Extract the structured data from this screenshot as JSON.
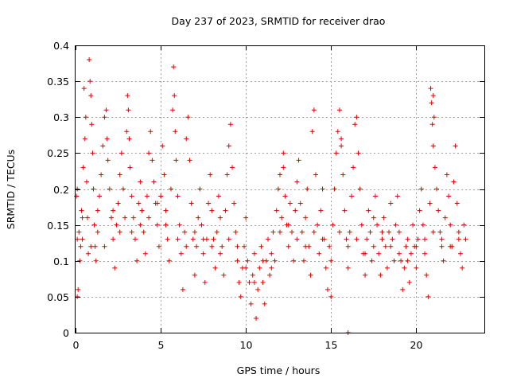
{
  "chart_data": {
    "type": "scatter",
    "title": "Day 237 of 2023, SRMTID for receiver drao",
    "xlabel": "GPS time / hours",
    "ylabel": "SRMTID / TECUs",
    "xlim": [
      0,
      24
    ],
    "ylim": [
      0,
      0.4
    ],
    "xticks": [
      0,
      5,
      10,
      15,
      20
    ],
    "xtick_labels": [
      "0",
      "5",
      "10",
      "15",
      "20"
    ],
    "yticks": [
      0,
      0.05,
      0.1,
      0.15,
      0.2,
      0.25,
      0.3,
      0.35,
      0.4
    ],
    "ytick_labels": [
      "0",
      "0.05",
      "0.1",
      "0.15",
      "0.2",
      "0.25",
      "0.3",
      "0.35",
      "0.4"
    ],
    "grid": true,
    "marker": "+",
    "color": "#e00000",
    "series": [
      {
        "name": "drao",
        "points": [
          [
            0.05,
            0.19
          ],
          [
            0.1,
            0.2
          ],
          [
            0.1,
            0.05
          ],
          [
            0.15,
            0.06
          ],
          [
            0.2,
            0.14
          ],
          [
            0.25,
            0.1
          ],
          [
            0.3,
            0.12
          ],
          [
            0.35,
            0.17
          ],
          [
            0.4,
            0.13
          ],
          [
            0.45,
            0.23
          ],
          [
            0.5,
            0.34
          ],
          [
            0.55,
            0.27
          ],
          [
            0.6,
            0.3
          ],
          [
            0.65,
            0.21
          ],
          [
            0.7,
            0.16
          ],
          [
            0.75,
            0.11
          ],
          [
            0.8,
            0.38
          ],
          [
            0.85,
            0.35
          ],
          [
            0.9,
            0.33
          ],
          [
            0.95,
            0.29
          ],
          [
            1.0,
            0.25
          ],
          [
            1.05,
            0.2
          ],
          [
            1.1,
            0.15
          ],
          [
            1.15,
            0.12
          ],
          [
            1.2,
            0.1
          ],
          [
            1.3,
            0.17
          ],
          [
            1.4,
            0.19
          ],
          [
            1.5,
            0.22
          ],
          [
            1.6,
            0.26
          ],
          [
            1.7,
            0.3
          ],
          [
            1.8,
            0.31
          ],
          [
            1.85,
            0.27
          ],
          [
            1.9,
            0.24
          ],
          [
            2.0,
            0.2
          ],
          [
            2.1,
            0.16
          ],
          [
            2.2,
            0.13
          ],
          [
            2.3,
            0.09
          ],
          [
            2.4,
            0.15
          ],
          [
            2.5,
            0.18
          ],
          [
            2.6,
            0.22
          ],
          [
            2.7,
            0.25
          ],
          [
            2.8,
            0.2
          ],
          [
            2.9,
            0.16
          ],
          [
            3.0,
            0.28
          ],
          [
            3.05,
            0.33
          ],
          [
            3.1,
            0.31
          ],
          [
            3.15,
            0.27
          ],
          [
            3.2,
            0.23
          ],
          [
            3.3,
            0.19
          ],
          [
            3.4,
            0.16
          ],
          [
            3.5,
            0.13
          ],
          [
            3.6,
            0.1
          ],
          [
            3.7,
            0.18
          ],
          [
            3.8,
            0.21
          ],
          [
            3.9,
            0.17
          ],
          [
            4.0,
            0.14
          ],
          [
            4.1,
            0.11
          ],
          [
            4.2,
            0.19
          ],
          [
            4.3,
            0.25
          ],
          [
            4.4,
            0.28
          ],
          [
            4.5,
            0.24
          ],
          [
            4.6,
            0.21
          ],
          [
            4.7,
            0.18
          ],
          [
            4.8,
            0.15
          ],
          [
            4.9,
            0.12
          ],
          [
            5.0,
            0.19
          ],
          [
            5.1,
            0.26
          ],
          [
            5.2,
            0.22
          ],
          [
            5.3,
            0.17
          ],
          [
            5.4,
            0.13
          ],
          [
            5.5,
            0.1
          ],
          [
            5.6,
            0.2
          ],
          [
            5.7,
            0.31
          ],
          [
            5.75,
            0.37
          ],
          [
            5.8,
            0.33
          ],
          [
            5.85,
            0.28
          ],
          [
            5.9,
            0.24
          ],
          [
            6.0,
            0.19
          ],
          [
            6.1,
            0.15
          ],
          [
            6.2,
            0.11
          ],
          [
            6.3,
            0.06
          ],
          [
            6.4,
            0.14
          ],
          [
            6.5,
            0.27
          ],
          [
            6.6,
            0.3
          ],
          [
            6.7,
            0.24
          ],
          [
            6.8,
            0.18
          ],
          [
            6.9,
            0.13
          ],
          [
            7.0,
            0.08
          ],
          [
            7.1,
            0.12
          ],
          [
            7.2,
            0.16
          ],
          [
            7.3,
            0.2
          ],
          [
            7.4,
            0.15
          ],
          [
            7.5,
            0.11
          ],
          [
            7.6,
            0.07
          ],
          [
            7.7,
            0.13
          ],
          [
            7.8,
            0.18
          ],
          [
            7.9,
            0.22
          ],
          [
            8.0,
            0.17
          ],
          [
            8.1,
            0.13
          ],
          [
            8.2,
            0.09
          ],
          [
            8.3,
            0.14
          ],
          [
            8.4,
            0.19
          ],
          [
            8.5,
            0.16
          ],
          [
            8.6,
            0.12
          ],
          [
            8.7,
            0.08
          ],
          [
            8.8,
            0.17
          ],
          [
            8.9,
            0.22
          ],
          [
            9.0,
            0.26
          ],
          [
            9.1,
            0.29
          ],
          [
            9.2,
            0.23
          ],
          [
            9.3,
            0.18
          ],
          [
            9.4,
            0.14
          ],
          [
            9.5,
            0.1
          ],
          [
            9.6,
            0.07
          ],
          [
            9.7,
            0.05
          ],
          [
            9.8,
            0.09
          ],
          [
            9.9,
            0.12
          ],
          [
            10.0,
            0.16
          ],
          [
            10.1,
            0.1
          ],
          [
            10.2,
            0.07
          ],
          [
            10.3,
            0.04
          ],
          [
            10.4,
            0.08
          ],
          [
            10.5,
            0.11
          ],
          [
            10.6,
            0.02
          ],
          [
            10.7,
            0.06
          ],
          [
            10.8,
            0.09
          ],
          [
            10.9,
            0.12
          ],
          [
            11.0,
            0.07
          ],
          [
            11.1,
            0.04
          ],
          [
            11.2,
            0.1
          ],
          [
            11.3,
            0.13
          ],
          [
            11.4,
            0.08
          ],
          [
            11.5,
            0.11
          ],
          [
            11.6,
            0.14
          ],
          [
            11.7,
            0.1
          ],
          [
            11.8,
            0.17
          ],
          [
            11.9,
            0.2
          ],
          [
            12.0,
            0.22
          ],
          [
            12.1,
            0.16
          ],
          [
            12.2,
            0.25
          ],
          [
            12.3,
            0.19
          ],
          [
            12.4,
            0.15
          ],
          [
            12.5,
            0.12
          ],
          [
            12.6,
            0.18
          ],
          [
            12.7,
            0.14
          ],
          [
            12.8,
            0.1
          ],
          [
            12.9,
            0.17
          ],
          [
            13.0,
            0.21
          ],
          [
            13.1,
            0.24
          ],
          [
            13.2,
            0.18
          ],
          [
            13.3,
            0.14
          ],
          [
            13.4,
            0.1
          ],
          [
            13.5,
            0.16
          ],
          [
            13.6,
            0.2
          ],
          [
            13.7,
            0.12
          ],
          [
            13.8,
            0.08
          ],
          [
            13.9,
            0.28
          ],
          [
            14.0,
            0.31
          ],
          [
            14.1,
            0.22
          ],
          [
            14.2,
            0.15
          ],
          [
            14.3,
            0.11
          ],
          [
            14.4,
            0.17
          ],
          [
            14.5,
            0.2
          ],
          [
            14.6,
            0.13
          ],
          [
            14.7,
            0.09
          ],
          [
            14.8,
            0.06
          ],
          [
            14.9,
            0.12
          ],
          [
            15.0,
            0.05
          ],
          [
            15.1,
            0.15
          ],
          [
            15.2,
            0.2
          ],
          [
            15.3,
            0.25
          ],
          [
            15.4,
            0.28
          ],
          [
            15.5,
            0.31
          ],
          [
            15.6,
            0.27
          ],
          [
            15.7,
            0.22
          ],
          [
            15.8,
            0.17
          ],
          [
            15.9,
            0.13
          ],
          [
            16.0,
            0.09
          ],
          [
            16.1,
            0.14
          ],
          [
            16.2,
            0.19
          ],
          [
            16.3,
            0.23
          ],
          [
            16.4,
            0.29
          ],
          [
            16.5,
            0.3
          ],
          [
            16.6,
            0.25
          ],
          [
            16.7,
            0.2
          ],
          [
            16.8,
            0.15
          ],
          [
            16.9,
            0.11
          ],
          [
            17.0,
            0.08
          ],
          [
            17.1,
            0.13
          ],
          [
            17.2,
            0.17
          ],
          [
            17.3,
            0.14
          ],
          [
            17.4,
            0.1
          ],
          [
            17.5,
            0.16
          ],
          [
            17.6,
            0.19
          ],
          [
            17.7,
            0.15
          ],
          [
            17.8,
            0.11
          ],
          [
            17.9,
            0.08
          ],
          [
            18.0,
            0.13
          ],
          [
            18.1,
            0.16
          ],
          [
            18.2,
            0.12
          ],
          [
            18.3,
            0.09
          ],
          [
            18.4,
            0.14
          ],
          [
            18.5,
            0.18
          ],
          [
            18.6,
            0.13
          ],
          [
            18.7,
            0.1
          ],
          [
            18.8,
            0.15
          ],
          [
            18.9,
            0.19
          ],
          [
            19.0,
            0.14
          ],
          [
            19.1,
            0.1
          ],
          [
            19.2,
            0.06
          ],
          [
            19.3,
            0.09
          ],
          [
            19.4,
            0.12
          ],
          [
            19.5,
            0.1
          ],
          [
            19.6,
            0.07
          ],
          [
            19.7,
            0.11
          ],
          [
            19.8,
            0.15
          ],
          [
            19.9,
            0.12
          ],
          [
            20.0,
            0.09
          ],
          [
            20.1,
            0.13
          ],
          [
            20.2,
            0.17
          ],
          [
            20.3,
            0.2
          ],
          [
            20.4,
            0.15
          ],
          [
            20.5,
            0.11
          ],
          [
            20.6,
            0.08
          ],
          [
            20.7,
            0.05
          ],
          [
            20.8,
            0.18
          ],
          [
            20.85,
            0.34
          ],
          [
            20.9,
            0.32
          ],
          [
            20.95,
            0.29
          ],
          [
            21.0,
            0.26
          ],
          [
            21.05,
            0.3
          ],
          [
            21.1,
            0.23
          ],
          [
            21.2,
            0.2
          ],
          [
            21.3,
            0.17
          ],
          [
            21.4,
            0.14
          ],
          [
            21.5,
            0.12
          ],
          [
            21.6,
            0.1
          ],
          [
            21.7,
            0.16
          ],
          [
            21.8,
            0.22
          ],
          [
            21.9,
            0.19
          ],
          [
            22.0,
            0.15
          ],
          [
            22.1,
            0.12
          ],
          [
            22.2,
            0.21
          ],
          [
            22.3,
            0.26
          ],
          [
            22.4,
            0.18
          ],
          [
            22.5,
            0.14
          ],
          [
            22.6,
            0.11
          ],
          [
            22.7,
            0.09
          ],
          [
            22.8,
            0.15
          ],
          [
            22.9,
            0.13
          ],
          [
            0.1,
            0.13
          ],
          [
            0.4,
            0.16
          ],
          [
            0.9,
            0.12
          ],
          [
            1.3,
            0.14
          ],
          [
            1.7,
            0.12
          ],
          [
            2.2,
            0.17
          ],
          [
            2.6,
            0.14
          ],
          [
            3.3,
            0.14
          ],
          [
            3.8,
            0.15
          ],
          [
            4.3,
            0.16
          ],
          [
            4.8,
            0.18
          ],
          [
            5.3,
            0.15
          ],
          [
            6.0,
            0.13
          ],
          [
            6.5,
            0.12
          ],
          [
            7.0,
            0.14
          ],
          [
            7.5,
            0.13
          ],
          [
            8.0,
            0.12
          ],
          [
            8.5,
            0.11
          ],
          [
            9.0,
            0.13
          ],
          [
            9.5,
            0.12
          ],
          [
            10.0,
            0.09
          ],
          [
            10.5,
            0.07
          ],
          [
            11.0,
            0.1
          ],
          [
            11.5,
            0.09
          ],
          [
            12.0,
            0.14
          ],
          [
            12.5,
            0.15
          ],
          [
            13.0,
            0.13
          ],
          [
            13.5,
            0.12
          ],
          [
            14.0,
            0.14
          ],
          [
            14.5,
            0.13
          ],
          [
            15.0,
            0.1
          ],
          [
            15.5,
            0.14
          ],
          [
            16.0,
            0.12
          ],
          [
            16.5,
            0.13
          ],
          [
            17.0,
            0.11
          ],
          [
            17.5,
            0.12
          ],
          [
            18.0,
            0.14
          ],
          [
            18.5,
            0.12
          ],
          [
            19.0,
            0.11
          ],
          [
            19.5,
            0.13
          ],
          [
            20.0,
            0.12
          ],
          [
            20.5,
            0.13
          ],
          [
            21.0,
            0.14
          ],
          [
            21.5,
            0.13
          ],
          [
            22.0,
            0.12
          ],
          [
            22.5,
            0.13
          ],
          [
            16.0,
            0.0
          ],
          [
            12.2,
            0.23
          ],
          [
            15.6,
            0.26
          ],
          [
            21.0,
            0.33
          ]
        ]
      }
    ]
  }
}
